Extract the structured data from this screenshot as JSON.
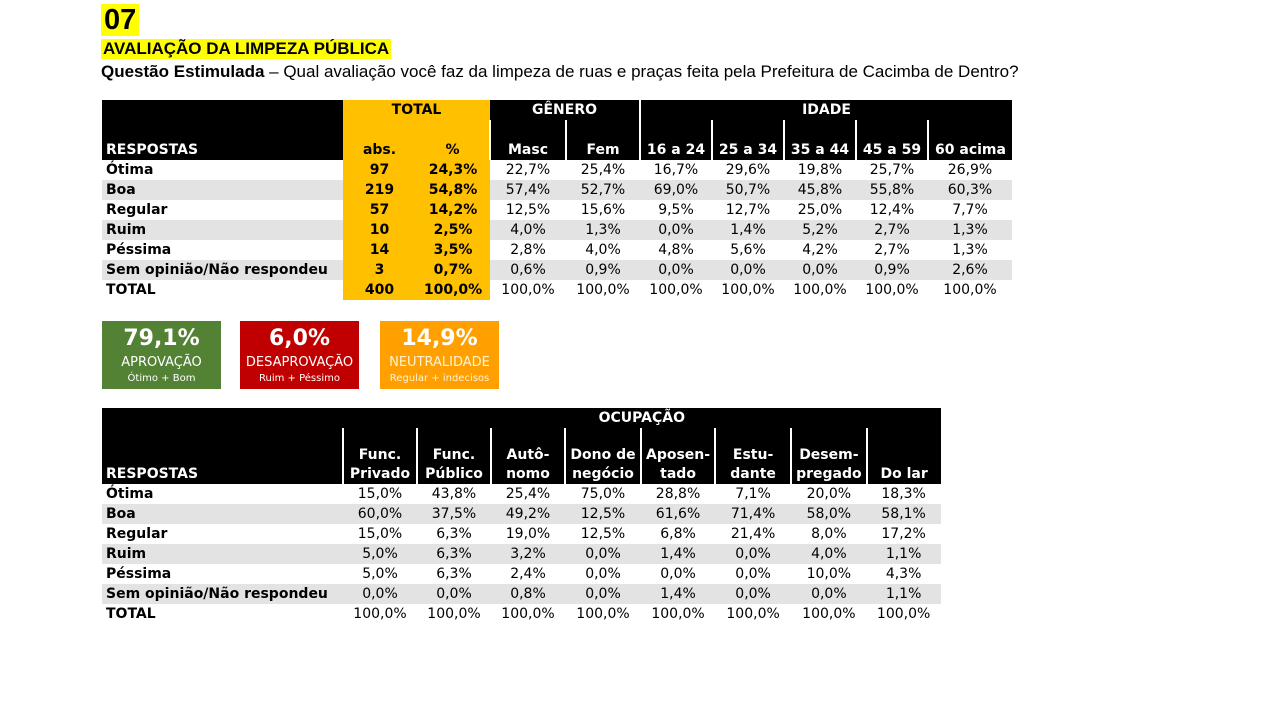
{
  "header": {
    "number": "07",
    "title": "AVALIAÇÃO DA LIMPEZA PÚBLICA",
    "question_label": "Questão Estimulada",
    "question_text": " – Qual avaliação você faz da limpeza de ruas e praças feita pela Prefeitura de Cacimba de Dentro?"
  },
  "table1": {
    "groups": {
      "total": "TOTAL",
      "genero": "GÊNERO",
      "idade": "IDADE"
    },
    "respostas_label": "RESPOSTAS",
    "columns": [
      "abs.",
      "%",
      "Masc",
      "Fem",
      "16 a 24",
      "25 a 34",
      "35 a 44",
      "45 a 59",
      "60 acima"
    ],
    "rows": [
      {
        "label": "Ótima",
        "values": [
          "97",
          "24,3%",
          "22,7%",
          "25,4%",
          "16,7%",
          "29,6%",
          "19,8%",
          "25,7%",
          "26,9%"
        ]
      },
      {
        "label": "Boa",
        "values": [
          "219",
          "54,8%",
          "57,4%",
          "52,7%",
          "69,0%",
          "50,7%",
          "45,8%",
          "55,8%",
          "60,3%"
        ]
      },
      {
        "label": "Regular",
        "values": [
          "57",
          "14,2%",
          "12,5%",
          "15,6%",
          "9,5%",
          "12,7%",
          "25,0%",
          "12,4%",
          "7,7%"
        ]
      },
      {
        "label": "Ruim",
        "values": [
          "10",
          "2,5%",
          "4,0%",
          "1,3%",
          "0,0%",
          "1,4%",
          "5,2%",
          "2,7%",
          "1,3%"
        ]
      },
      {
        "label": "Péssima",
        "values": [
          "14",
          "3,5%",
          "2,8%",
          "4,0%",
          "4,8%",
          "5,6%",
          "4,2%",
          "2,7%",
          "1,3%"
        ]
      },
      {
        "label": "Sem opinião/Não respondeu",
        "values": [
          "3",
          "0,7%",
          "0,6%",
          "0,9%",
          "0,0%",
          "0,0%",
          "0,0%",
          "0,9%",
          "2,6%"
        ]
      },
      {
        "label": "TOTAL",
        "values": [
          "400",
          "100,0%",
          "100,0%",
          "100,0%",
          "100,0%",
          "100,0%",
          "100,0%",
          "100,0%",
          "100,0%"
        ]
      }
    ]
  },
  "summary": {
    "aprovacao": {
      "value": "79,1%",
      "label": "APROVAÇÃO",
      "detail": "Ótimo + Bom",
      "color": "#548235"
    },
    "desaprovacao": {
      "value": "6,0%",
      "label": "DESAPROVAÇÃO",
      "detail": "Ruim + Péssimo",
      "color": "#c00000"
    },
    "neutralidade": {
      "value": "14,9%",
      "label": "NEUTRALIDADE",
      "detail": "Regular + indecisos",
      "color": "#ffa000"
    }
  },
  "table2": {
    "group": "OCUPAÇÃO",
    "respostas_label": "RESPOSTAS",
    "columns": [
      [
        "Func.",
        "Privado"
      ],
      [
        "Func.",
        "Público"
      ],
      [
        "Autô-",
        "nomo"
      ],
      [
        "Dono de",
        "negócio"
      ],
      [
        "Aposen-",
        "tado"
      ],
      [
        "Estu-",
        "dante"
      ],
      [
        "Desem-",
        "pregado"
      ],
      [
        "",
        "Do lar"
      ]
    ],
    "rows": [
      {
        "label": "Ótima",
        "values": [
          "15,0%",
          "43,8%",
          "25,4%",
          "75,0%",
          "28,8%",
          "7,1%",
          "20,0%",
          "18,3%"
        ]
      },
      {
        "label": "Boa",
        "values": [
          "60,0%",
          "37,5%",
          "49,2%",
          "12,5%",
          "61,6%",
          "71,4%",
          "58,0%",
          "58,1%"
        ]
      },
      {
        "label": "Regular",
        "values": [
          "15,0%",
          "6,3%",
          "19,0%",
          "12,5%",
          "6,8%",
          "21,4%",
          "8,0%",
          "17,2%"
        ]
      },
      {
        "label": "Ruim",
        "values": [
          "5,0%",
          "6,3%",
          "3,2%",
          "0,0%",
          "1,4%",
          "0,0%",
          "4,0%",
          "1,1%"
        ]
      },
      {
        "label": "Péssima",
        "values": [
          "5,0%",
          "6,3%",
          "2,4%",
          "0,0%",
          "0,0%",
          "0,0%",
          "10,0%",
          "4,3%"
        ]
      },
      {
        "label": "Sem opinião/Não respondeu",
        "values": [
          "0,0%",
          "0,0%",
          "0,8%",
          "0,0%",
          "1,4%",
          "0,0%",
          "0,0%",
          "1,1%"
        ]
      },
      {
        "label": "TOTAL",
        "values": [
          "100,0%",
          "100,0%",
          "100,0%",
          "100,0%",
          "100,0%",
          "100,0%",
          "100,0%",
          "100,0%"
        ]
      }
    ]
  }
}
